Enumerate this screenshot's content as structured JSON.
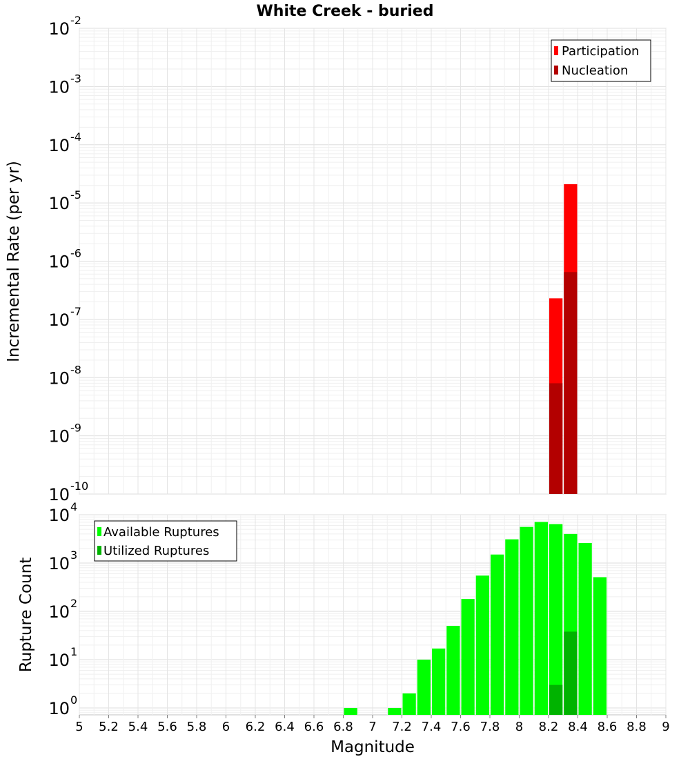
{
  "chart_data": [
    {
      "type": "bar",
      "title": "White Creek - buried",
      "xlabel": "",
      "ylabel": "Incremental Rate (per yr)",
      "yscale": "log",
      "xlim": [
        5,
        9
      ],
      "ylim": [
        1e-10,
        0.01
      ],
      "y_ticks": [
        {
          "base": "10",
          "exp": "-10"
        },
        {
          "base": "10",
          "exp": "-9"
        },
        {
          "base": "10",
          "exp": "-8"
        },
        {
          "base": "10",
          "exp": "-7"
        },
        {
          "base": "10",
          "exp": "-6"
        },
        {
          "base": "10",
          "exp": "-5"
        },
        {
          "base": "10",
          "exp": "-4"
        },
        {
          "base": "10",
          "exp": "-3"
        },
        {
          "base": "10",
          "exp": "-2"
        }
      ],
      "bin_width": 0.1,
      "legend_position": "top-right",
      "series": [
        {
          "name": "Participation",
          "color": "#ff0000",
          "x": [
            8.25,
            8.35
          ],
          "values": [
            2.3e-07,
            2.1e-05
          ]
        },
        {
          "name": "Nucleation",
          "color": "#b30000",
          "x": [
            8.25,
            8.35
          ],
          "values": [
            8e-09,
            6.5e-07
          ]
        }
      ]
    },
    {
      "type": "bar",
      "title": "",
      "xlabel": "Magnitude",
      "ylabel": "Rupture Count",
      "yscale": "log",
      "xlim": [
        5,
        9
      ],
      "ylim": [
        0.72,
        10000
      ],
      "y_ticks": [
        {
          "base": "10",
          "exp": "0"
        },
        {
          "base": "10",
          "exp": "1"
        },
        {
          "base": "10",
          "exp": "2"
        },
        {
          "base": "10",
          "exp": "3"
        },
        {
          "base": "10",
          "exp": "4"
        }
      ],
      "x_ticks": [
        "5",
        "5.2",
        "5.4",
        "5.6",
        "5.8",
        "6",
        "6.2",
        "6.4",
        "6.6",
        "6.8",
        "7",
        "7.2",
        "7.4",
        "7.6",
        "7.8",
        "8",
        "8.2",
        "8.4",
        "8.6",
        "8.8",
        "9"
      ],
      "bin_width": 0.1,
      "legend_position": "top-left",
      "series": [
        {
          "name": "Available Ruptures",
          "color": "#00ff00",
          "x": [
            6.85,
            7.15,
            7.25,
            7.35,
            7.45,
            7.55,
            7.65,
            7.75,
            7.85,
            7.95,
            8.05,
            8.15,
            8.25,
            8.35,
            8.45,
            8.55
          ],
          "values": [
            1,
            1,
            2,
            10,
            17,
            50,
            180,
            550,
            1500,
            3100,
            5600,
            7100,
            6400,
            4000,
            2600,
            510
          ]
        },
        {
          "name": "Utilized Ruptures",
          "color": "#00b300",
          "x": [
            8.25,
            8.35
          ],
          "values": [
            3,
            38
          ]
        }
      ]
    }
  ]
}
